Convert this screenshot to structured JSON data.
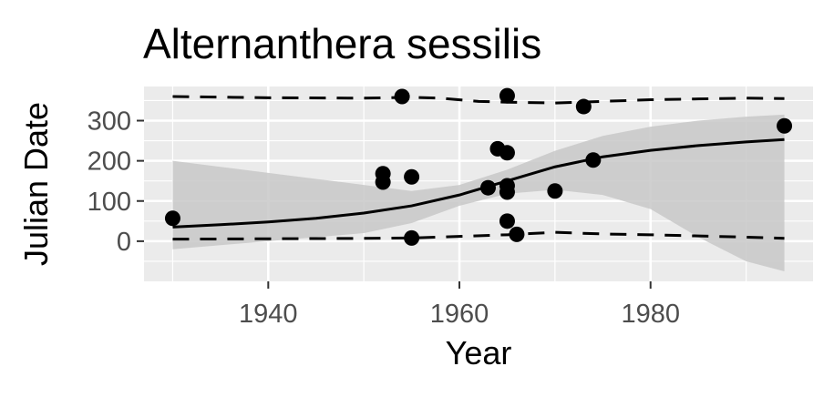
{
  "chart_data": {
    "type": "scatter",
    "title": "Alternanthera sessilis",
    "xlabel": "Year",
    "ylabel": "Julian Date",
    "xlim": [
      1927,
      1997
    ],
    "ylim": [
      -100,
      385
    ],
    "x_ticks": [
      1940,
      1960,
      1980
    ],
    "y_ticks": [
      0,
      100,
      200,
      300
    ],
    "grid": true,
    "background": "#ebebeb",
    "points": [
      {
        "x": 1930,
        "y": 57
      },
      {
        "x": 1952,
        "y": 168
      },
      {
        "x": 1952,
        "y": 147
      },
      {
        "x": 1954,
        "y": 360
      },
      {
        "x": 1955,
        "y": 160
      },
      {
        "x": 1955,
        "y": 8
      },
      {
        "x": 1963,
        "y": 133
      },
      {
        "x": 1964,
        "y": 230
      },
      {
        "x": 1965,
        "y": 362
      },
      {
        "x": 1965,
        "y": 220
      },
      {
        "x": 1965,
        "y": 138
      },
      {
        "x": 1965,
        "y": 122
      },
      {
        "x": 1965,
        "y": 50
      },
      {
        "x": 1966,
        "y": 17
      },
      {
        "x": 1970,
        "y": 125
      },
      {
        "x": 1973,
        "y": 335
      },
      {
        "x": 1974,
        "y": 202
      },
      {
        "x": 1994,
        "y": 287
      }
    ],
    "fit_line": [
      {
        "x": 1930,
        "y": 35
      },
      {
        "x": 1935,
        "y": 41
      },
      {
        "x": 1940,
        "y": 48
      },
      {
        "x": 1945,
        "y": 57
      },
      {
        "x": 1950,
        "y": 70
      },
      {
        "x": 1955,
        "y": 88
      },
      {
        "x": 1960,
        "y": 115
      },
      {
        "x": 1965,
        "y": 150
      },
      {
        "x": 1970,
        "y": 185
      },
      {
        "x": 1975,
        "y": 210
      },
      {
        "x": 1980,
        "y": 226
      },
      {
        "x": 1985,
        "y": 238
      },
      {
        "x": 1990,
        "y": 247
      },
      {
        "x": 1994,
        "y": 253
      }
    ],
    "confidence_band": {
      "x": [
        1930,
        1935,
        1940,
        1945,
        1950,
        1955,
        1960,
        1965,
        1970,
        1975,
        1980,
        1985,
        1990,
        1994
      ],
      "upper": [
        200,
        185,
        170,
        155,
        140,
        125,
        140,
        178,
        225,
        262,
        285,
        300,
        310,
        315
      ],
      "lower": [
        -20,
        -10,
        0,
        10,
        20,
        45,
        88,
        118,
        128,
        115,
        80,
        10,
        -50,
        -75
      ]
    },
    "quantile_upper": [
      {
        "x": 1930,
        "y": 360
      },
      {
        "x": 1940,
        "y": 357
      },
      {
        "x": 1950,
        "y": 356
      },
      {
        "x": 1955,
        "y": 358
      },
      {
        "x": 1958,
        "y": 356
      },
      {
        "x": 1962,
        "y": 348
      },
      {
        "x": 1965,
        "y": 346
      },
      {
        "x": 1970,
        "y": 344
      },
      {
        "x": 1975,
        "y": 348
      },
      {
        "x": 1980,
        "y": 352
      },
      {
        "x": 1985,
        "y": 354
      },
      {
        "x": 1990,
        "y": 356
      },
      {
        "x": 1994,
        "y": 355
      }
    ],
    "quantile_lower": [
      {
        "x": 1930,
        "y": 5
      },
      {
        "x": 1940,
        "y": 6
      },
      {
        "x": 1950,
        "y": 7
      },
      {
        "x": 1955,
        "y": 8
      },
      {
        "x": 1960,
        "y": 12
      },
      {
        "x": 1965,
        "y": 16
      },
      {
        "x": 1970,
        "y": 22
      },
      {
        "x": 1975,
        "y": 18
      },
      {
        "x": 1980,
        "y": 16
      },
      {
        "x": 1985,
        "y": 13
      },
      {
        "x": 1990,
        "y": 10
      },
      {
        "x": 1994,
        "y": 7
      }
    ],
    "colors": {
      "panel": "#ebebeb",
      "grid": "#ffffff",
      "band": "#c8c8c8",
      "line": "#000000",
      "point": "#000000",
      "tick": "#4d4d4d"
    }
  }
}
